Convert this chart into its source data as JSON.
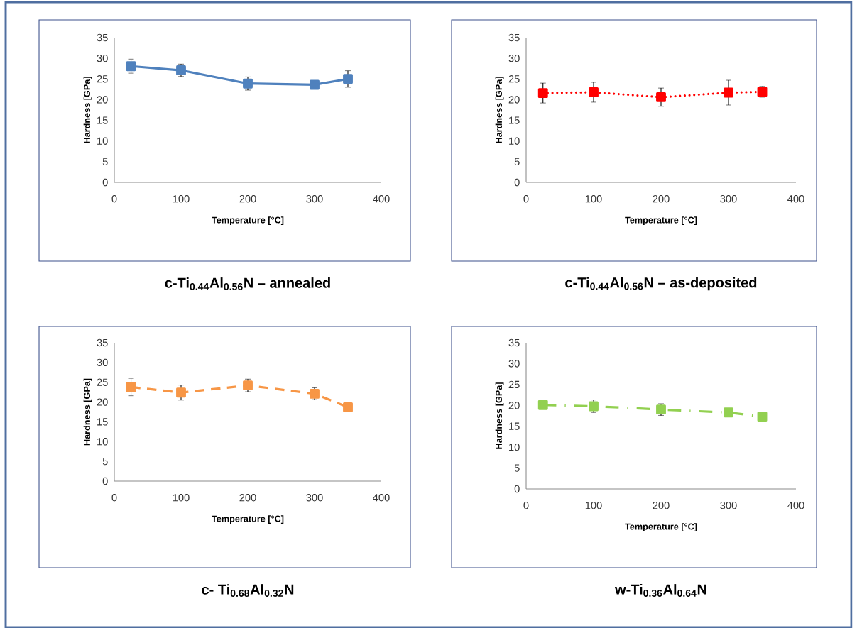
{
  "chart_data": [
    {
      "type": "line",
      "title": "c-Ti$_{0.44}$Al$_{0.56}$N – annealed",
      "xlabel": "Temperature [°C]",
      "ylabel": "Hardness [GPa]",
      "x": [
        25,
        100,
        200,
        300,
        350
      ],
      "marker": "square",
      "line_style": "solid",
      "grid": false,
      "xlim": [
        0,
        400
      ],
      "ylim": [
        0,
        35
      ],
      "xticks": [
        0,
        100,
        200,
        300,
        400
      ],
      "yticks": [
        0,
        5,
        10,
        15,
        20,
        25,
        30,
        35
      ],
      "series": [
        {
          "color": "#4f81bd",
          "values": [
            28.1,
            27.1,
            23.9,
            23.6,
            25.0
          ],
          "errors": [
            1.7,
            1.5,
            1.6,
            null,
            2.0
          ]
        }
      ]
    },
    {
      "type": "line",
      "title": "c-Ti$_{0.44}$Al$_{0.56}$N – as-deposited",
      "xlabel": "Temperature [°C]",
      "ylabel": "Hardness [GPa]",
      "x": [
        25,
        100,
        200,
        300,
        350
      ],
      "marker": "square",
      "line_style": "dotted",
      "grid": false,
      "xlim": [
        0,
        400
      ],
      "ylim": [
        0,
        35
      ],
      "xticks": [
        0,
        100,
        200,
        300,
        400
      ],
      "yticks": [
        0,
        5,
        10,
        15,
        20,
        25,
        30,
        35
      ],
      "series": [
        {
          "color": "#ff0000",
          "values": [
            21.6,
            21.8,
            20.6,
            21.7,
            21.9
          ],
          "errors": [
            2.4,
            2.4,
            2.2,
            3.0,
            1.3
          ]
        }
      ]
    },
    {
      "type": "line",
      "title": "c- Ti$_{0.68}$Al$_{0.32}$N",
      "xlabel": "Temperature [°C]",
      "ylabel": "Hardness [GPa]",
      "x": [
        25,
        100,
        200,
        300,
        350
      ],
      "marker": "square",
      "line_style": "dashed",
      "grid": false,
      "xlim": [
        0,
        400
      ],
      "ylim": [
        0,
        35
      ],
      "xticks": [
        0,
        100,
        200,
        300,
        400
      ],
      "yticks": [
        0,
        5,
        10,
        15,
        20,
        25,
        30,
        35
      ],
      "series": [
        {
          "color": "#f79646",
          "values": [
            23.8,
            22.4,
            24.2,
            22.1,
            18.7
          ],
          "errors": [
            2.2,
            1.9,
            1.6,
            1.5,
            null
          ]
        }
      ]
    },
    {
      "type": "line",
      "title": "w-Ti$_{0.36}$Al$_{0.64}$N",
      "xlabel": "Temperature [°C]",
      "ylabel": "Hardness [GPa]",
      "x": [
        25,
        100,
        200,
        300,
        350
      ],
      "marker": "square",
      "line_style": "dashdot",
      "grid": false,
      "xlim": [
        0,
        400
      ],
      "ylim": [
        0,
        35
      ],
      "xticks": [
        0,
        100,
        200,
        300,
        400
      ],
      "yticks": [
        0,
        5,
        10,
        15,
        20,
        25,
        30,
        35
      ],
      "series": [
        {
          "color": "#92d050",
          "values": [
            20.1,
            19.8,
            19.0,
            18.3,
            17.3
          ],
          "errors": [
            null,
            1.5,
            1.4,
            null,
            null
          ]
        }
      ]
    }
  ]
}
